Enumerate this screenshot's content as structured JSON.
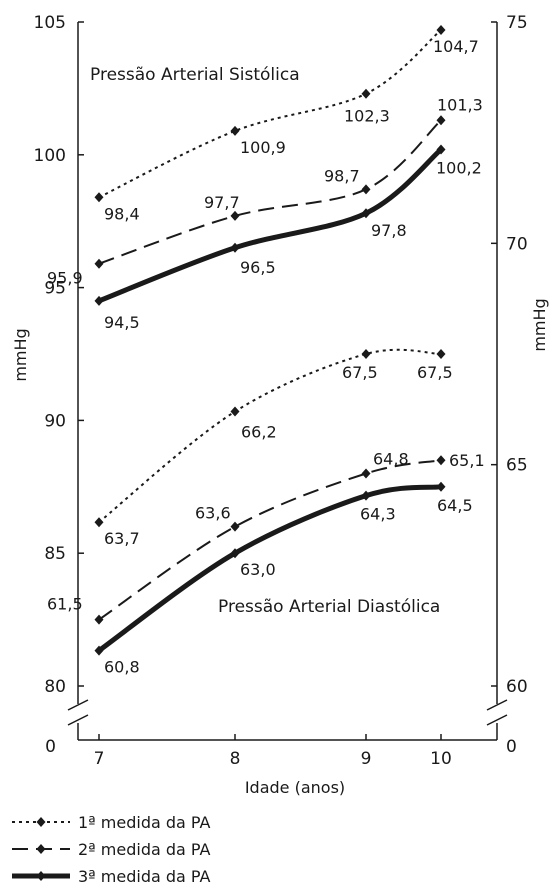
{
  "chart_data": {
    "type": "line",
    "x": [
      7,
      8,
      9,
      10
    ],
    "xlabel": "Idade (anos)",
    "ylabel_left": "mmHg",
    "ylabel_right": "mmHg",
    "left_axis": {
      "ylim": [
        80,
        105
      ],
      "ticks": [
        "80",
        "85",
        "90",
        "95",
        "100",
        "105"
      ],
      "break_label": "0"
    },
    "right_axis": {
      "ylim": [
        60,
        75
      ],
      "ticks": [
        "60",
        "65",
        "70",
        "75"
      ],
      "break_label": "0"
    },
    "x_ticks": [
      "7",
      "8",
      "9",
      "10"
    ],
    "grid": false,
    "legend_position": "bottom-left",
    "annotations": {
      "systolic": "Pressão Arterial Sistólica",
      "diastolic": "Pressão Arterial Diastólica"
    },
    "series": [
      {
        "name": "1ª medida da PA",
        "style": "dotted",
        "group": "systolic",
        "axis": "left",
        "values": [
          98.4,
          100.9,
          102.3,
          104.7
        ],
        "labels": [
          "98,4",
          "100,9",
          "102,3",
          "104,7"
        ]
      },
      {
        "name": "2ª medida da PA",
        "style": "dashed",
        "group": "systolic",
        "axis": "left",
        "values": [
          95.9,
          97.7,
          98.7,
          101.3
        ],
        "labels": [
          "95,9",
          "97,7",
          "98,7",
          "101,3"
        ]
      },
      {
        "name": "3ª medida da PA",
        "style": "solid",
        "group": "systolic",
        "axis": "left",
        "values": [
          94.5,
          96.5,
          97.8,
          100.2
        ],
        "labels": [
          "94,5",
          "96,5",
          "97,8",
          "100,2"
        ]
      },
      {
        "name": "1ª medida da PA",
        "style": "dotted",
        "group": "diastolic",
        "axis": "right",
        "values": [
          63.7,
          66.2,
          67.5,
          67.5
        ],
        "labels": [
          "63,7",
          "66,2",
          "67,5",
          "67,5"
        ]
      },
      {
        "name": "2ª medida da PA",
        "style": "dashed",
        "group": "diastolic",
        "axis": "right",
        "values": [
          61.5,
          63.6,
          64.8,
          65.1
        ],
        "labels": [
          "61,5",
          "63,6",
          "64,8",
          "65,1"
        ]
      },
      {
        "name": "3ª medida da PA",
        "style": "solid",
        "group": "diastolic",
        "axis": "right",
        "values": [
          60.8,
          63.0,
          64.3,
          64.5
        ],
        "labels": [
          "60,8",
          "63,0",
          "64,3",
          "64,5"
        ]
      }
    ],
    "legend": [
      {
        "label": "1ª medida da PA",
        "style": "dotted"
      },
      {
        "label": "2ª medida da PA",
        "style": "dashed"
      },
      {
        "label": "3ª medida da PA",
        "style": "solid"
      }
    ],
    "colors": {
      "line": "#1a1a1a",
      "background": "#ffffff"
    }
  }
}
